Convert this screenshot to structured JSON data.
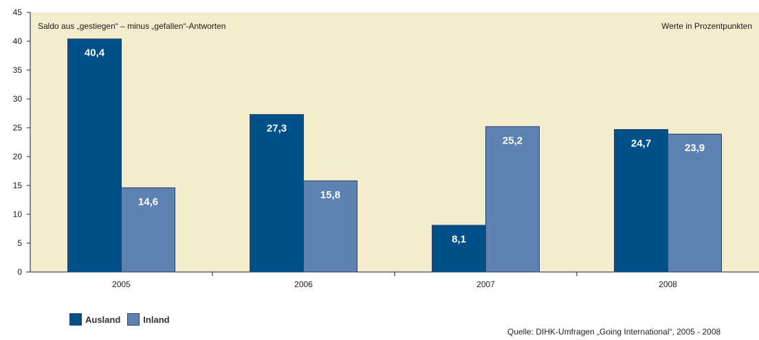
{
  "chart_data": {
    "type": "bar",
    "categories": [
      "2005",
      "2006",
      "2007",
      "2008"
    ],
    "series": [
      {
        "name": "Ausland",
        "values": [
          40.4,
          27.3,
          8.1,
          24.7
        ],
        "labels": [
          "40,4",
          "27,3",
          "8,1",
          "24,7"
        ],
        "color": "#00508a"
      },
      {
        "name": "Inland",
        "values": [
          14.6,
          15.8,
          25.2,
          23.9
        ],
        "labels": [
          "14,6",
          "15,8",
          "25,2",
          "23,9"
        ],
        "color": "#5e82b1"
      }
    ],
    "ylim": [
      0,
      45
    ],
    "yticks": [
      "0",
      "5",
      "10",
      "15",
      "20",
      "25",
      "30",
      "35",
      "40",
      "45"
    ],
    "subtitle_left": "Saldo aus „gestiegen“ – minus „gefallen“-Antworten",
    "subtitle_right": "Werte in Prozentpunkten",
    "plot_background": "#f3edce",
    "legend_position": "bottom-left"
  },
  "source": "Quelle: DIHK-Umfragen „Going International“, 2005 - 2008"
}
